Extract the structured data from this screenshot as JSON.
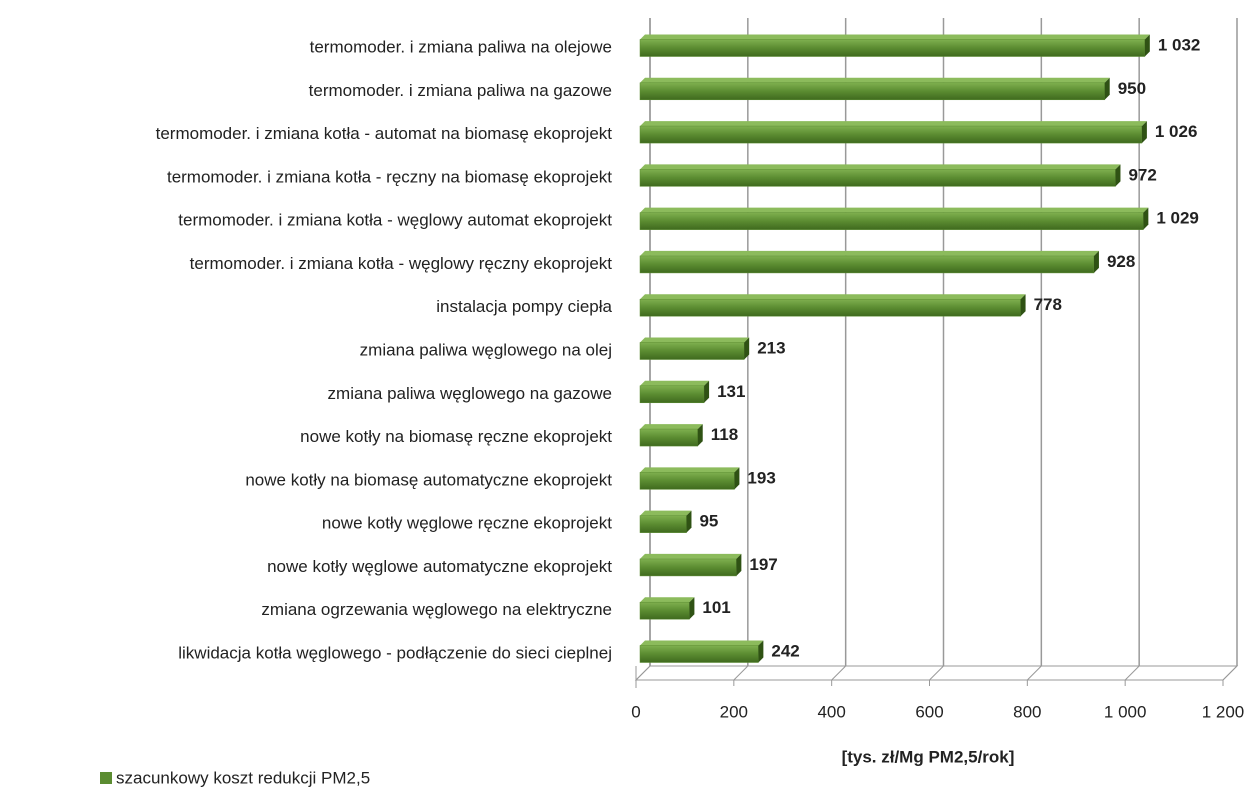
{
  "chart_data": {
    "type": "bar",
    "orientation": "horizontal",
    "x_label": "[tys. zł/Mg PM2,5/rok]",
    "categories": [
      "termomoder. i zmiana paliwa na olejowe",
      "termomoder. i zmiana paliwa na gazowe",
      "termomoder. i zmiana kotła - automat na biomasę ekoprojekt",
      "termomoder. i zmiana kotła - ręczny na biomasę ekoprojekt",
      "termomoder. i zmiana kotła - węglowy automat ekoprojekt",
      "termomoder. i zmiana kotła - węglowy ręczny ekoprojekt",
      "instalacja pompy ciepła",
      "zmiana paliwa węglowego na olej",
      "zmiana paliwa węglowego na gazowe",
      "nowe kotły na biomasę ręczne ekoprojekt",
      "nowe kotły na biomasę automatyczne ekoprojekt",
      "nowe kotły węglowe ręczne ekoprojekt",
      "nowe kotły węglowe automatyczne ekoprojekt",
      "zmiana ogrzewania węglowego na elektryczne",
      "likwidacja kotła węglowego - podłączenie do sieci cieplnej"
    ],
    "series": [
      {
        "name": "szacunkowy koszt redukcji PM2,5",
        "color": "#5b8c31",
        "values": [
          1032,
          950,
          1026,
          972,
          1029,
          928,
          778,
          213,
          131,
          118,
          193,
          95,
          197,
          101,
          242
        ],
        "value_labels": [
          "1 032",
          "950",
          "1 026",
          "972",
          "1 029",
          "928",
          "778",
          "213",
          "131",
          "118",
          "193",
          "95",
          "197",
          "101",
          "242"
        ]
      }
    ],
    "xlim": [
      0,
      1200
    ],
    "xticks": [
      0,
      200,
      400,
      600,
      800,
      {
        "value": 1000,
        "label": "1 000"
      },
      {
        "value": 1200,
        "label": "1 200"
      }
    ],
    "grid": true,
    "legend": "bottom-left"
  }
}
